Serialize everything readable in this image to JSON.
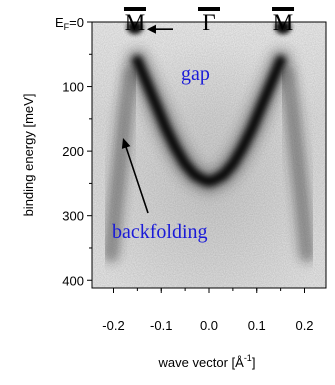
{
  "chart_data": {
    "type": "heatmap",
    "title": "",
    "xlabel": "wave vector [Å",
    "xlabel_sup": "-1",
    "xlabel_end": "]",
    "ylabel": "binding energy [meV]",
    "xlim": [
      -0.245,
      0.245
    ],
    "ylim": [
      0,
      412
    ],
    "y_reversed": true,
    "x_ticks": [
      -0.2,
      -0.1,
      0.0,
      0.1,
      0.2
    ],
    "x_tick_labels": [
      "-0.2",
      "-0.1",
      "0.0",
      "0.1",
      "0.2"
    ],
    "y_ticks": [
      0,
      100,
      200,
      300,
      400
    ],
    "y_tick_labels": [
      "",
      "100",
      "200",
      "300",
      "400"
    ],
    "y_zero_label": {
      "main": "E",
      "sub": "F",
      "rest": "=0"
    },
    "top_points": [
      {
        "label": "M",
        "x": -0.155
      },
      {
        "label": "Γ",
        "x": 0.0
      },
      {
        "label": "M",
        "x": 0.155
      }
    ],
    "main_band": {
      "x": [
        -0.15,
        -0.13,
        -0.11,
        -0.09,
        -0.07,
        -0.05,
        -0.03,
        -0.01,
        0.0,
        0.01,
        0.03,
        0.05,
        0.07,
        0.09,
        0.11,
        0.13,
        0.15
      ],
      "energy": [
        60,
        95,
        130,
        165,
        195,
        220,
        237,
        245,
        247,
        245,
        237,
        220,
        195,
        165,
        130,
        95,
        60
      ]
    },
    "backfolded_band": {
      "x": [
        -0.165,
        -0.175,
        -0.185,
        -0.195,
        -0.205,
        0.165,
        0.175,
        0.185,
        0.195,
        0.205
      ],
      "energy": [
        80,
        140,
        210,
        280,
        360,
        80,
        140,
        210,
        280,
        360
      ]
    },
    "gap_spots": [
      {
        "x": -0.155,
        "energy": 5
      },
      {
        "x": 0.155,
        "energy": 5
      }
    ],
    "annotations": [
      {
        "text": "gap",
        "color": "#1a1ad8"
      },
      {
        "text": "backfolding",
        "color": "#1a1ad8"
      }
    ]
  }
}
